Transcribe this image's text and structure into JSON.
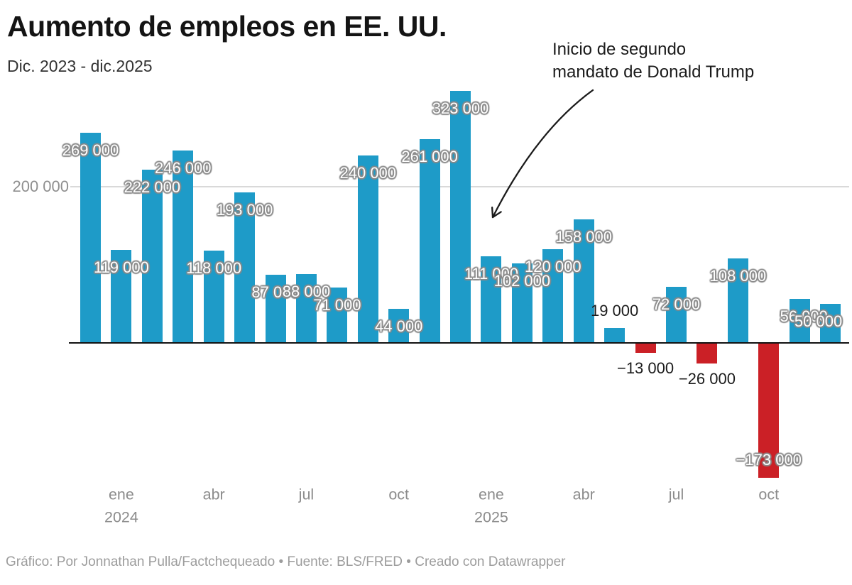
{
  "header": {
    "title": "Aumento de empleos en EE. UU.",
    "subtitle": "Dic. 2023 - dic.2025"
  },
  "annotation": {
    "line1": "Inicio de segundo",
    "line2": "mandato de Donald Trump"
  },
  "footer": {
    "text": "Gráfico: Por Jonnathan Pulla/Factchequeado • Fuente: BLS/FRED • Creado con Datawrapper"
  },
  "colors": {
    "positive": "#1e9bc8",
    "negative": "#cb2026",
    "grid": "#d9d9d9",
    "axis": "#121212",
    "tick_text": "#8c8c8c",
    "annotation_text": "#1b1b1b",
    "footer_text": "#9c9c9c"
  },
  "chart_data": {
    "type": "bar",
    "title": "Aumento de empleos en EE. UU.",
    "subtitle": "Dic. 2023 - dic.2025",
    "xlabel": "",
    "ylabel": "",
    "grid": true,
    "legend": "none",
    "categories": [
      "dic 2023",
      "ene 2024",
      "feb 2024",
      "mar 2024",
      "abr 2024",
      "may 2024",
      "jun 2024",
      "jul 2024",
      "ago 2024",
      "sep 2024",
      "oct 2024",
      "nov 2024",
      "dic 2024",
      "ene 2025",
      "feb 2025",
      "mar 2025",
      "abr 2025",
      "may 2025",
      "jun 2025",
      "jul 2025",
      "ago 2025",
      "sep 2025",
      "oct 2025",
      "nov 2025",
      "dic 2025"
    ],
    "values": [
      269000,
      119000,
      222000,
      246000,
      118000,
      193000,
      87000,
      88000,
      71000,
      240000,
      44000,
      261000,
      323000,
      111000,
      102000,
      120000,
      158000,
      19000,
      -13000,
      72000,
      -26000,
      108000,
      -173000,
      56000,
      50000
    ],
    "bar_labels": [
      "269 000",
      "119 000",
      "222 000",
      "246 000",
      "118 000",
      "193 000",
      "87 000",
      "88 000",
      "71 000",
      "240 000",
      "44 000",
      "261 000",
      "323 000",
      "111 000",
      "102 000",
      "120 000",
      "158 000",
      "19 000",
      "−13 000",
      "72 000",
      "−26 000",
      "108 000",
      "−173 000",
      "56 000",
      "50 000"
    ],
    "label_modes": [
      "in-top",
      "in-top",
      "in-top",
      "in-top",
      "in-top",
      "in-top",
      "in-top",
      "in-top",
      "in-top",
      "in-top",
      "in-top",
      "in-top",
      "in-top",
      "in-top",
      "in-top",
      "in-top",
      "in-top",
      "above",
      "below",
      "in-top",
      "below",
      "in-top",
      "in-bottom",
      "in-top",
      "in-top"
    ],
    "label_dx": {
      "23": 6,
      "24": -17
    },
    "y_axis": {
      "gridline_value": 200000,
      "gridline_label": "200 000",
      "ylim": [
        -190000,
        330000
      ]
    },
    "x_ticks": [
      {
        "index": 1,
        "month": "ene",
        "year": "2024"
      },
      {
        "index": 4,
        "month": "abr"
      },
      {
        "index": 7,
        "month": "jul"
      },
      {
        "index": 10,
        "month": "oct"
      },
      {
        "index": 13,
        "month": "ene",
        "year": "2025"
      },
      {
        "index": 16,
        "month": "abr"
      },
      {
        "index": 19,
        "month": "jul"
      },
      {
        "index": 22,
        "month": "oct"
      }
    ],
    "colors": {
      "positive": "#1e9bc8",
      "negative": "#cb2026"
    }
  }
}
